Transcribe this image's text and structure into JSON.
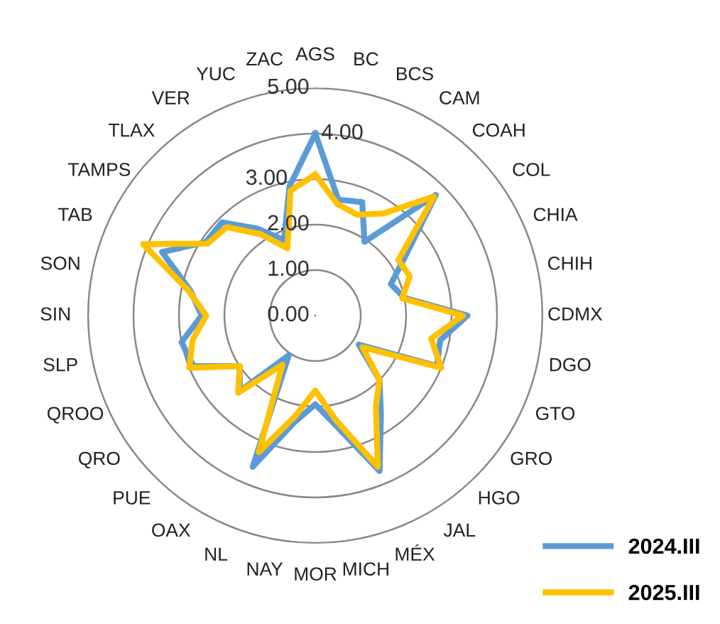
{
  "chart_data": {
    "type": "radar",
    "categories": [
      "AGS",
      "BC",
      "BCS",
      "CAM",
      "COAH",
      "COL",
      "CHIA",
      "CHIH",
      "CDMX",
      "DGO",
      "GTO",
      "GRO",
      "HGO",
      "JAL",
      "MÉX",
      "MICH",
      "MOR",
      "NAY",
      "NL",
      "OAX",
      "PUE",
      "QRO",
      "QROO",
      "SLP",
      "SIN",
      "SON",
      "TAB",
      "TAMPS",
      "TLAX",
      "VER",
      "YUC",
      "ZAC"
    ],
    "series": [
      {
        "name": "2024.III",
        "color": "#5b9bd5",
        "values": [
          4.0,
          2.6,
          2.7,
          1.95,
          3.75,
          2.4,
          1.8,
          2.0,
          3.35,
          2.8,
          2.9,
          1.15,
          2.0,
          2.6,
          3.7,
          2.5,
          1.95,
          2.4,
          3.6,
          1.05,
          2.35,
          2.0,
          2.9,
          3.0,
          2.5,
          2.8,
          3.65,
          2.9,
          2.9,
          2.3,
          1.8,
          2.9
        ]
      },
      {
        "name": "2025.III",
        "color": "#ffc000",
        "values": [
          3.1,
          2.5,
          2.4,
          2.7,
          3.7,
          2.2,
          2.25,
          1.95,
          3.25,
          2.6,
          3.0,
          1.25,
          2.0,
          2.4,
          3.6,
          2.35,
          1.65,
          2.25,
          3.25,
          1.3,
          2.4,
          2.0,
          3.0,
          2.75,
          2.4,
          2.85,
          4.1,
          2.85,
          2.75,
          2.15,
          1.6,
          2.8
        ]
      }
    ],
    "ylim": [
      0,
      5
    ],
    "yticks": [
      {
        "value": 0,
        "label": "0.00"
      },
      {
        "value": 1,
        "label": "1.00"
      },
      {
        "value": 2,
        "label": "2.00"
      },
      {
        "value": 3,
        "label": "3.00"
      },
      {
        "value": 4,
        "label": "4.00"
      },
      {
        "value": 5,
        "label": "5.00"
      }
    ],
    "grid": "y",
    "legend": "bottom right",
    "marker": "none",
    "line_style": "solid"
  }
}
